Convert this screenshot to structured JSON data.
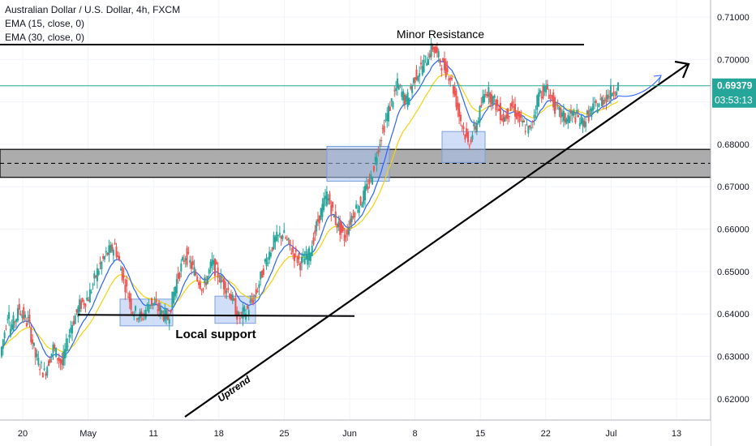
{
  "legend": {
    "symbol": "Australian Dollar / U.S. Dollar, 4h, FXCM",
    "ema1": "EMA (15, close, 0)",
    "ema2": "EMA (30, close, 0)"
  },
  "annotations": {
    "resistance": "Minor Resistance",
    "support": "Local support",
    "uptrend": "Uptrend"
  },
  "price_label": {
    "value": "0.69379",
    "countdown": "03:53:13"
  },
  "colors": {
    "up": "#26a69a",
    "down": "#ef5350",
    "ema15": "#2962ff",
    "ema30": "#f5d20a",
    "zone": "#9e9e9e",
    "box": "#a9c4f0",
    "price_line": "#26a69a"
  },
  "chart_data": {
    "type": "candlestick",
    "title": "Australian Dollar / U.S. Dollar, 4h, FXCM",
    "ylim": [
      0.615,
      0.714
    ],
    "y_ticks": [
      "0.71000",
      "0.70000",
      "0.69000",
      "0.68000",
      "0.67000",
      "0.66000",
      "0.65000",
      "0.64000",
      "0.63000",
      "0.62000"
    ],
    "x_ticks": [
      "20",
      "May",
      "11",
      "18",
      "25",
      "Jun",
      "8",
      "15",
      "22",
      "Jul",
      "13"
    ],
    "key_levels": {
      "minor_resistance": 0.7035,
      "local_support": 0.6398,
      "zone_top": 0.6788,
      "zone_mid": 0.6755,
      "zone_bottom": 0.6722
    },
    "last_price": 0.69379,
    "path": [
      [
        0.63,
        0.642
      ],
      [
        0.636,
        0.64
      ],
      [
        0.642,
        0.638
      ],
      [
        0.64,
        0.63
      ],
      [
        0.63,
        0.626
      ],
      [
        0.626,
        0.632
      ],
      [
        0.632,
        0.628
      ],
      [
        0.628,
        0.637
      ],
      [
        0.637,
        0.642
      ],
      [
        0.642,
        0.644
      ],
      [
        0.644,
        0.65
      ],
      [
        0.65,
        0.654
      ],
      [
        0.654,
        0.656
      ],
      [
        0.656,
        0.648
      ],
      [
        0.648,
        0.641
      ],
      [
        0.641,
        0.639
      ],
      [
        0.639,
        0.643
      ],
      [
        0.643,
        0.641
      ],
      [
        0.641,
        0.639
      ],
      [
        0.639,
        0.648
      ],
      [
        0.648,
        0.654
      ],
      [
        0.654,
        0.65
      ],
      [
        0.65,
        0.646
      ],
      [
        0.646,
        0.652
      ],
      [
        0.652,
        0.648
      ],
      [
        0.648,
        0.645
      ],
      [
        0.645,
        0.639
      ],
      [
        0.639,
        0.641
      ],
      [
        0.641,
        0.645
      ],
      [
        0.645,
        0.652
      ],
      [
        0.652,
        0.657
      ],
      [
        0.657,
        0.659
      ],
      [
        0.659,
        0.655
      ],
      [
        0.655,
        0.652
      ],
      [
        0.652,
        0.654
      ],
      [
        0.654,
        0.662
      ],
      [
        0.662,
        0.668
      ],
      [
        0.668,
        0.662
      ],
      [
        0.662,
        0.658
      ],
      [
        0.658,
        0.664
      ],
      [
        0.664,
        0.667
      ],
      [
        0.667,
        0.672
      ],
      [
        0.672,
        0.681
      ],
      [
        0.681,
        0.688
      ],
      [
        0.688,
        0.694
      ],
      [
        0.694,
        0.69
      ],
      [
        0.69,
        0.696
      ],
      [
        0.696,
        0.699
      ],
      [
        0.699,
        0.703
      ],
      [
        0.703,
        0.699
      ],
      [
        0.699,
        0.696
      ],
      [
        0.696,
        0.687
      ],
      [
        0.687,
        0.68
      ],
      [
        0.68,
        0.685
      ],
      [
        0.685,
        0.693
      ],
      [
        0.693,
        0.69
      ],
      [
        0.69,
        0.686
      ],
      [
        0.686,
        0.689
      ],
      [
        0.689,
        0.685
      ],
      [
        0.685,
        0.683
      ],
      [
        0.683,
        0.692
      ],
      [
        0.692,
        0.693
      ],
      [
        0.693,
        0.688
      ],
      [
        0.688,
        0.686
      ],
      [
        0.686,
        0.687
      ],
      [
        0.687,
        0.685
      ],
      [
        0.685,
        0.688
      ],
      [
        0.688,
        0.69
      ],
      [
        0.69,
        0.692
      ],
      [
        0.692,
        0.6938
      ]
    ]
  }
}
